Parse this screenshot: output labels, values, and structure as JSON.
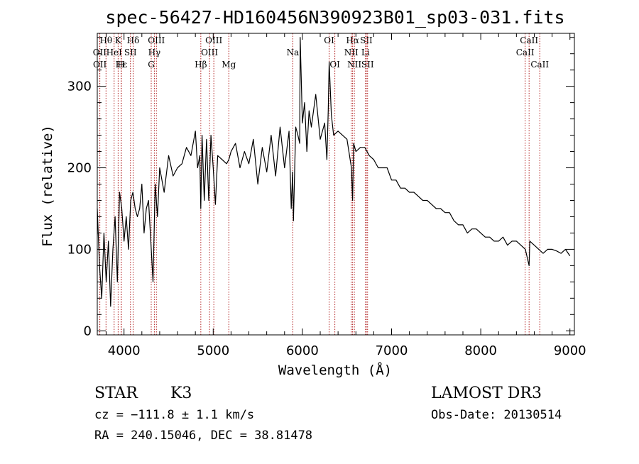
{
  "chart_data": {
    "type": "line",
    "title": "spec-56427-HD160456N390923B01_sp03-031.fits",
    "xlabel": "Wavelength (Å)",
    "ylabel": "Flux (relative)",
    "xlim": [
      3700,
      9050
    ],
    "ylim": [
      -5,
      365
    ],
    "xticks": [
      4000,
      5000,
      6000,
      7000,
      8000,
      9000
    ],
    "yticks": [
      0,
      100,
      200,
      300
    ],
    "grid": false,
    "series": [
      {
        "x": [
          3700,
          3725,
          3750,
          3775,
          3800,
          3825,
          3850,
          3875,
          3900,
          3925,
          3950,
          3975,
          4000,
          4025,
          4050,
          4075,
          4100,
          4125,
          4150,
          4175,
          4200,
          4225,
          4250,
          4275,
          4300,
          4325,
          4350,
          4375,
          4400,
          4450,
          4500,
          4550,
          4600,
          4650,
          4700,
          4750,
          4800,
          4825,
          4850,
          4861,
          4875,
          4900,
          4925,
          4950,
          4975,
          5000,
          5025,
          5050,
          5100,
          5150,
          5175,
          5200,
          5250,
          5300,
          5350,
          5400,
          5450,
          5500,
          5550,
          5600,
          5650,
          5700,
          5750,
          5800,
          5850,
          5875,
          5890,
          5900,
          5925,
          5950,
          5970,
          5975,
          6000,
          6025,
          6050,
          6075,
          6100,
          6150,
          6200,
          6250,
          6275,
          6290,
          6300,
          6325,
          6350,
          6400,
          6450,
          6500,
          6550,
          6563,
          6575,
          6600,
          6650,
          6700,
          6750,
          6800,
          6850,
          6900,
          6950,
          7000,
          7050,
          7100,
          7150,
          7200,
          7250,
          7300,
          7350,
          7400,
          7450,
          7500,
          7550,
          7600,
          7650,
          7700,
          7750,
          7800,
          7850,
          7900,
          7950,
          8000,
          8050,
          8100,
          8150,
          8200,
          8250,
          8300,
          8350,
          8400,
          8450,
          8500,
          8542,
          8550,
          8600,
          8650,
          8700,
          8750,
          8800,
          8850,
          8900,
          8950,
          9000
        ],
        "values": [
          150,
          80,
          40,
          120,
          60,
          110,
          30,
          100,
          140,
          60,
          170,
          150,
          110,
          140,
          100,
          160,
          170,
          150,
          140,
          150,
          180,
          120,
          150,
          160,
          110,
          60,
          180,
          140,
          200,
          170,
          215,
          190,
          200,
          205,
          225,
          215,
          245,
          200,
          215,
          150,
          240,
          160,
          235,
          160,
          240,
          200,
          155,
          215,
          210,
          205,
          210,
          220,
          230,
          200,
          220,
          205,
          235,
          180,
          225,
          195,
          240,
          190,
          250,
          200,
          245,
          150,
          195,
          135,
          250,
          240,
          230,
          360,
          255,
          280,
          220,
          270,
          250,
          290,
          235,
          255,
          210,
          270,
          330,
          265,
          240,
          245,
          240,
          235,
          200,
          160,
          230,
          220,
          225,
          225,
          215,
          210,
          200,
          200,
          200,
          185,
          185,
          175,
          175,
          170,
          170,
          165,
          160,
          160,
          155,
          150,
          150,
          145,
          145,
          135,
          130,
          130,
          120,
          125,
          125,
          120,
          115,
          115,
          110,
          110,
          115,
          105,
          110,
          110,
          105,
          100,
          80,
          110,
          105,
          100,
          95,
          100,
          100,
          98,
          95,
          100,
          92
        ]
      }
    ],
    "line_markers": [
      {
        "label": "Hθ",
        "x": 3798,
        "row": 1
      },
      {
        "label": "K",
        "x": 3934,
        "row": 1
      },
      {
        "label": "Hδ",
        "x": 4102,
        "row": 1
      },
      {
        "label": "OIII",
        "x": 4363,
        "row": 1
      },
      {
        "label": "OIII",
        "x": 5007,
        "row": 1
      },
      {
        "label": "OI",
        "x": 6300,
        "row": 1
      },
      {
        "label": "Hα",
        "x": 6563,
        "row": 1
      },
      {
        "label": "SII",
        "x": 6717,
        "row": 1
      },
      {
        "label": "CaII",
        "x": 8542,
        "row": 1
      },
      {
        "label": "OII",
        "x": 3727,
        "row": 2
      },
      {
        "label": "HeI",
        "x": 3889,
        "row": 2
      },
      {
        "label": "SII",
        "x": 4072,
        "row": 2
      },
      {
        "label": "Hγ",
        "x": 4340,
        "row": 2
      },
      {
        "label": "OIII",
        "x": 4959,
        "row": 2
      },
      {
        "label": "Na",
        "x": 5893,
        "row": 2
      },
      {
        "label": "NII",
        "x": 6548,
        "row": 2
      },
      {
        "label": "Li",
        "x": 6708,
        "row": 2
      },
      {
        "label": "CaII",
        "x": 8498,
        "row": 2
      },
      {
        "label": "OII",
        "x": 3729,
        "row": 3
      },
      {
        "label": "Hε",
        "x": 3970,
        "row": 3
      },
      {
        "label": "H",
        "x": 3968,
        "row": 3
      },
      {
        "label": "G",
        "x": 4305,
        "row": 3
      },
      {
        "label": "Hβ",
        "x": 4861,
        "row": 3
      },
      {
        "label": "Mg",
        "x": 5175,
        "row": 3
      },
      {
        "label": "OI",
        "x": 6364,
        "row": 3
      },
      {
        "label": "NII",
        "x": 6583,
        "row": 3
      },
      {
        "label": "SII",
        "x": 6731,
        "row": 3
      },
      {
        "label": "CaII",
        "x": 8662,
        "row": 3
      }
    ]
  },
  "info": {
    "object_type": "STAR",
    "subclass": "K3",
    "survey": "LAMOST DR3",
    "redshift": "cz = −111.8 ± 1.1 km/s",
    "obs_date": "Obs-Date: 20130514",
    "coords": "RA = 240.15046, DEC =  38.81478"
  }
}
